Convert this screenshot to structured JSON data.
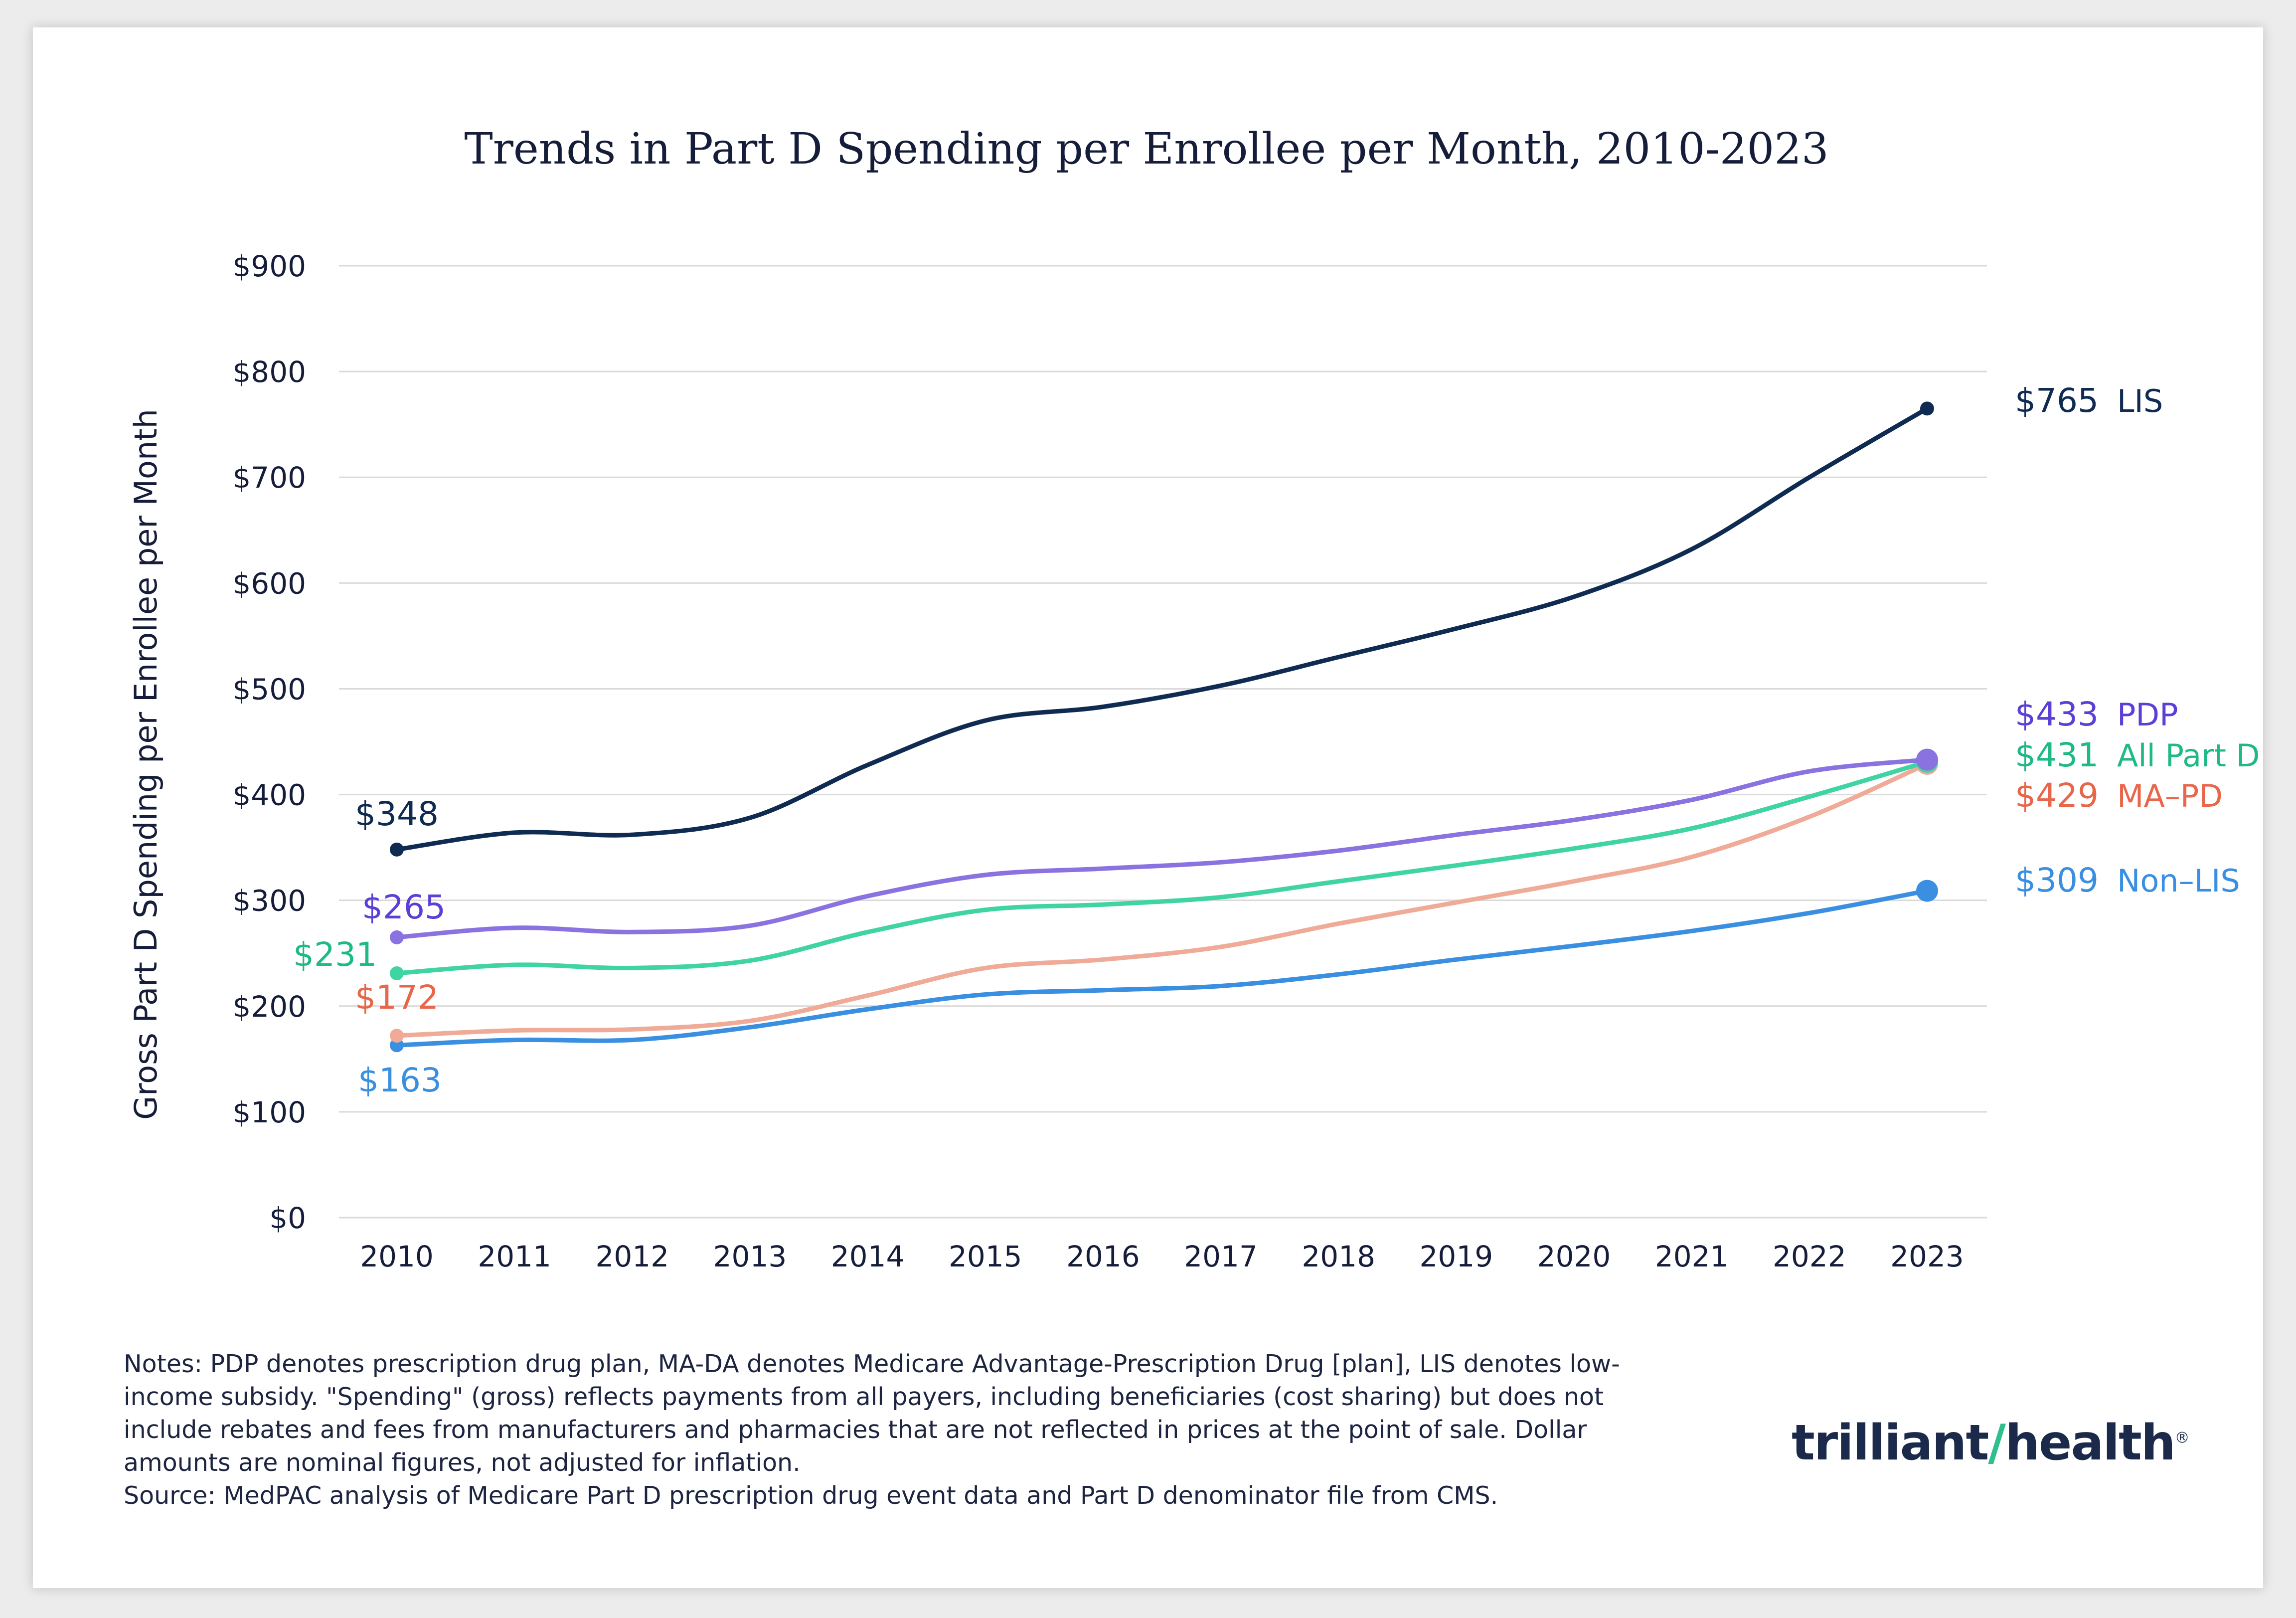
{
  "chart_data": {
    "type": "line",
    "title": "Trends in Part D Spending per Enrollee per Month, 2010-2023",
    "xlabel": "",
    "ylabel": "Gross Part D Spending per Enrollee per Month",
    "ylim": [
      0,
      900
    ],
    "y_ticks": [
      0,
      100,
      200,
      300,
      400,
      500,
      600,
      700,
      800,
      900
    ],
    "y_tick_labels": [
      "$0",
      "$100",
      "$200",
      "$300",
      "$400",
      "$500",
      "$600",
      "$700",
      "$800",
      "$900"
    ],
    "categories": [
      "2010",
      "2011",
      "2012",
      "2013",
      "2014",
      "2015",
      "2016",
      "2017",
      "2018",
      "2019",
      "2020",
      "2021",
      "2022",
      "2023"
    ],
    "grid": true,
    "series": [
      {
        "name": "LIS",
        "key": "lis",
        "color": "#0f2b52",
        "values": [
          348,
          364,
          362,
          378,
          428,
          470,
          483,
          503,
          530,
          557,
          587,
          632,
          700,
          765
        ],
        "start_label": "$348",
        "end_label": "$765",
        "end_name": "LIS"
      },
      {
        "name": "PDP",
        "key": "pdp",
        "color": "#8a72e0",
        "label_color": "#5b3fd6",
        "values": [
          265,
          274,
          270,
          276,
          304,
          324,
          330,
          336,
          347,
          362,
          376,
          395,
          422,
          433
        ],
        "start_label": "$265",
        "end_label": "$433",
        "end_name": "PDP"
      },
      {
        "name": "All Part D",
        "key": "all",
        "color": "#3fd4a2",
        "label_color": "#1fb983",
        "values": [
          231,
          239,
          236,
          243,
          270,
          291,
          296,
          303,
          318,
          333,
          349,
          368,
          398,
          431
        ],
        "start_label": "$231",
        "end_label": "$431",
        "end_name": "All Part D"
      },
      {
        "name": "MA-PD",
        "key": "mapd",
        "color": "#f0ab98",
        "label_color": "#e8664a",
        "values": [
          172,
          177,
          178,
          186,
          210,
          236,
          244,
          256,
          278,
          298,
          318,
          341,
          379,
          429
        ],
        "start_label": "$172",
        "end_label": "$429",
        "end_name": "MA–PD"
      },
      {
        "name": "Non-LIS",
        "key": "nonlis",
        "color": "#3a8fe0",
        "values": [
          163,
          168,
          168,
          180,
          197,
          211,
          215,
          219,
          230,
          244,
          257,
          271,
          288,
          309
        ],
        "start_label": "$163",
        "end_label": "$309",
        "end_name": "Non–LIS"
      }
    ]
  },
  "notes": {
    "line1": "Notes: PDP denotes prescription drug plan, MA-DA denotes Medicare Advantage-Prescription Drug [plan], LIS denotes low-",
    "line2": "income subsidy. \"Spending\" (gross) reflects payments from all payers, including beneficiaries (cost sharing) but does not",
    "line3": "include rebates and fees from manufacturers and pharmacies that are not reflected in prices at the point of sale. Dollar",
    "line4": "amounts are nominal figures, not adjusted for inflation.",
    "source": "Source: MedPAC analysis of Medicare Part D prescription drug event data and Part D denominator file from CMS."
  },
  "logo": {
    "part1": "trilliant",
    "mark": "/",
    "part2": "health",
    "reg": "®"
  }
}
